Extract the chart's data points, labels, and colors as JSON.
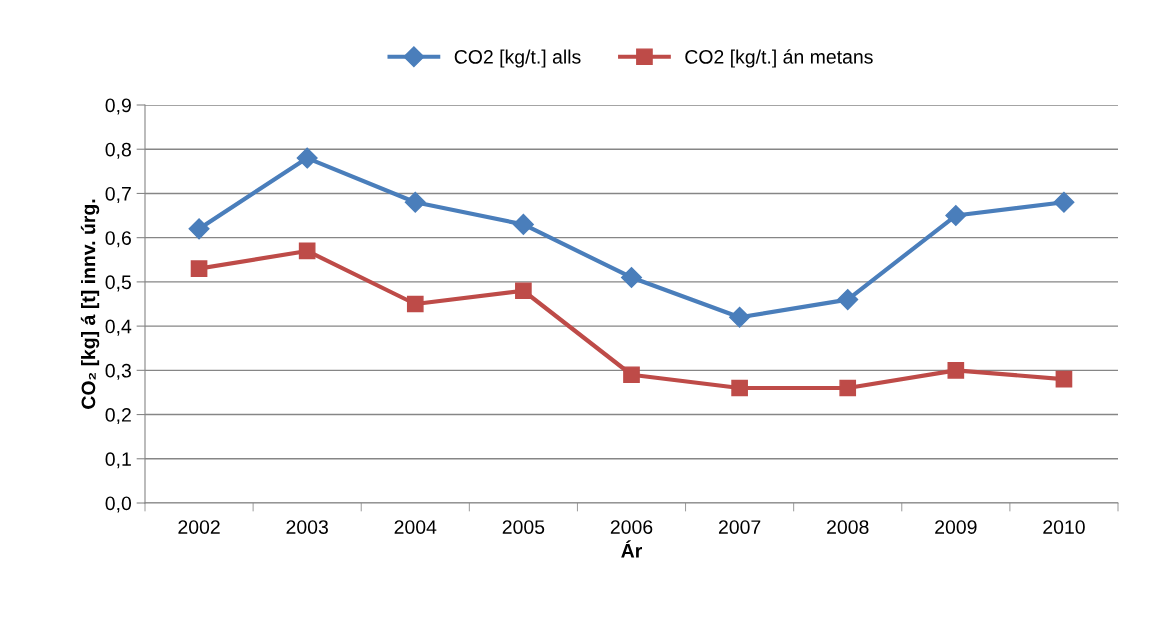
{
  "chart_data": {
    "type": "line",
    "xlabel": "Ár",
    "ylabel": "CO₂ [kg] á [t] innv. úrg.",
    "categories": [
      "2002",
      "2003",
      "2004",
      "2005",
      "2006",
      "2007",
      "2008",
      "2009",
      "2010"
    ],
    "series": [
      {
        "name": "CO2 [kg/t.] alls",
        "color": "#4a7ebb",
        "marker": "diamond",
        "values": [
          0.62,
          0.78,
          0.68,
          0.63,
          0.51,
          0.42,
          0.46,
          0.65,
          0.68
        ]
      },
      {
        "name": "CO2 [kg/t.] án metans",
        "color": "#be4b48",
        "marker": "square",
        "values": [
          0.53,
          0.57,
          0.45,
          0.48,
          0.29,
          0.26,
          0.26,
          0.3,
          0.28
        ]
      }
    ],
    "ylim": [
      0,
      0.9
    ],
    "yticks": [
      {
        "value": 0,
        "label": "0,0"
      },
      {
        "value": 0.1,
        "label": "0,1"
      },
      {
        "value": 0.2,
        "label": "0,2"
      },
      {
        "value": 0.3,
        "label": "0,3"
      },
      {
        "value": 0.4,
        "label": "0,4"
      },
      {
        "value": 0.5,
        "label": "0,5"
      },
      {
        "value": 0.6,
        "label": "0,6"
      },
      {
        "value": 0.7,
        "label": "0,7"
      },
      {
        "value": 0.8,
        "label": "0,8"
      },
      {
        "value": 0.9,
        "label": "0,9"
      }
    ],
    "grid": "y",
    "legend": "top",
    "line_style": "solid"
  }
}
